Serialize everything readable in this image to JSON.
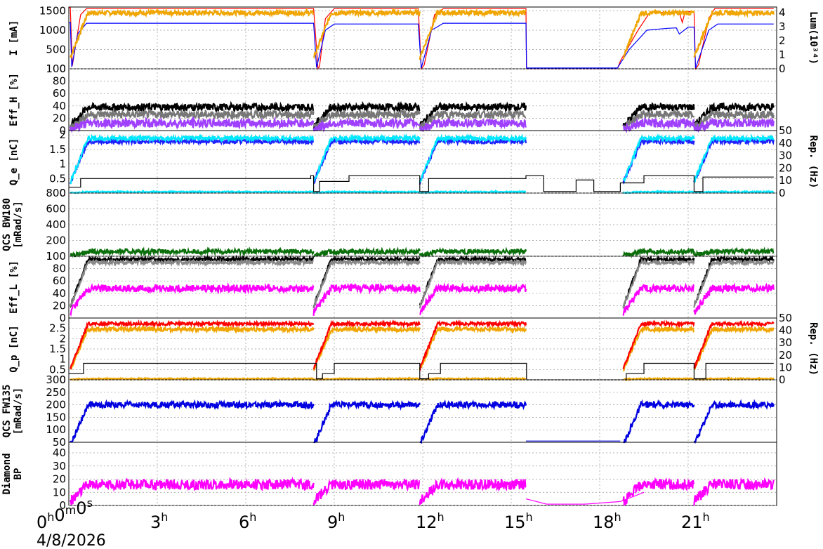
{
  "chart_data": {
    "type": "line",
    "x_axis": {
      "range_hours": [
        0,
        24
      ],
      "tick_labels": [
        {
          "hour": 0,
          "base": "0",
          "text": [
            [
              "0",
              "h"
            ],
            [
              "0",
              "m"
            ],
            [
              "0",
              "s"
            ]
          ]
        },
        {
          "hour": 3,
          "text": [
            [
              "3",
              "h"
            ]
          ]
        },
        {
          "hour": 6,
          "text": [
            [
              "6",
              "h"
            ]
          ]
        },
        {
          "hour": 9,
          "text": [
            [
              "9",
              "h"
            ]
          ]
        },
        {
          "hour": 12,
          "text": [
            [
              "12",
              "h"
            ]
          ]
        },
        {
          "hour": 15,
          "text": [
            [
              "15",
              "h"
            ]
          ]
        },
        {
          "hour": 18,
          "text": [
            [
              "18",
              "h"
            ]
          ]
        },
        {
          "hour": 21,
          "text": [
            [
              "21",
              "h"
            ]
          ]
        }
      ],
      "date": "4/8/2026"
    },
    "fills": [
      [
        0.05,
        8.3
      ],
      [
        8.3,
        11.9
      ],
      [
        11.9,
        15.5
      ],
      [
        18.8,
        21.2
      ],
      [
        21.2,
        23.9
      ]
    ],
    "panels": [
      {
        "ylabel": "I [mA]",
        "ylim": [
          0,
          1600
        ],
        "yticks": [
          0,
          500,
          1000,
          1500
        ],
        "right_label": "Lum(10³⁴)",
        "right_lim": [
          0,
          4.4
        ],
        "right_ticks": [
          0,
          1,
          2,
          3,
          4
        ],
        "series": [
          {
            "kind": "line",
            "color": "#ff0000",
            "points": [
              [
                0,
                1580
              ],
              [
                0.05,
                1580
              ],
              [
                0.12,
                80
              ],
              [
                0.4,
                1400
              ],
              [
                0.6,
                1560
              ],
              [
                8.3,
                1560
              ],
              [
                8.45,
                0
              ],
              [
                8.5,
                60
              ],
              [
                8.7,
                1300
              ],
              [
                9.0,
                1560
              ],
              [
                11.85,
                1560
              ],
              [
                11.95,
                0
              ],
              [
                12.05,
                100
              ],
              [
                12.4,
                1400
              ],
              [
                12.7,
                1560
              ],
              [
                15.5,
                1560
              ],
              [
                15.52,
                0
              ],
              [
                18.6,
                0
              ],
              [
                18.7,
                200
              ],
              [
                19.3,
                1000
              ],
              [
                19.7,
                1460
              ],
              [
                20.7,
                1460
              ],
              [
                20.8,
                1200
              ],
              [
                20.9,
                1480
              ],
              [
                21.2,
                1480
              ],
              [
                21.25,
                0
              ],
              [
                21.35,
                100
              ],
              [
                21.7,
                1300
              ],
              [
                21.9,
                1560
              ],
              [
                23.9,
                1560
              ]
            ]
          },
          {
            "kind": "line",
            "color": "#0000ff",
            "points": [
              [
                0,
                1200
              ],
              [
                0.05,
                1200
              ],
              [
                0.1,
                50
              ],
              [
                0.3,
                900
              ],
              [
                0.6,
                1180
              ],
              [
                8.3,
                1180
              ],
              [
                8.4,
                30
              ],
              [
                8.7,
                1000
              ],
              [
                9.0,
                1160
              ],
              [
                11.85,
                1160
              ],
              [
                11.95,
                20
              ],
              [
                12.3,
                1000
              ],
              [
                12.7,
                1180
              ],
              [
                15.5,
                1180
              ],
              [
                15.52,
                20
              ],
              [
                18.6,
                20
              ],
              [
                19.0,
                500
              ],
              [
                19.6,
                1000
              ],
              [
                20.3,
                1050
              ],
              [
                20.6,
                1060
              ],
              [
                20.7,
                900
              ],
              [
                21.0,
                1080
              ],
              [
                21.2,
                1080
              ],
              [
                21.25,
                20
              ],
              [
                21.7,
                1000
              ],
              [
                22.0,
                1160
              ],
              [
                23.9,
                1160
              ]
            ]
          },
          {
            "kind": "fill",
            "color": "#f0a500",
            "value": 1450,
            "noise": 60
          },
          {
            "kind": "line",
            "color": "#000000",
            "width": 0.8,
            "points": [
              [
                15.5,
                0
              ],
              [
                18.6,
                0
              ]
            ]
          }
        ]
      },
      {
        "ylabel": "Eff_H [%]",
        "ylim": [
          0,
          100
        ],
        "yticks": [
          0,
          20,
          40,
          60,
          80,
          100
        ],
        "series": [
          {
            "kind": "fill",
            "color": "#000000",
            "value": 38,
            "noise": 6
          },
          {
            "kind": "fill",
            "color": "#777777",
            "value": 26,
            "noise": 6
          },
          {
            "kind": "fill",
            "color": "#a040ff",
            "value": 12,
            "noise": 7
          }
        ]
      },
      {
        "ylabel": "Q_e [nC]",
        "ylim": [
          0,
          2.15
        ],
        "yticks": [
          0,
          0.5,
          1,
          1.5,
          2
        ],
        "right_label": "Rep. (Hz)",
        "right_lim": [
          0,
          50
        ],
        "right_ticks": [
          0,
          10,
          20,
          30,
          40,
          50
        ],
        "series": [
          {
            "kind": "fill",
            "color": "#2020ff",
            "value": 1.78,
            "noise": 0.08
          },
          {
            "kind": "fill",
            "color": "#00e8ff",
            "value": 1.88,
            "noise": 0.08
          },
          {
            "kind": "fill",
            "color": "#00e8ff",
            "value": 0.04,
            "noise": 0.02
          },
          {
            "kind": "step",
            "color": "#000000",
            "points": [
              [
                0,
                0.2
              ],
              [
                0.4,
                0.5
              ],
              [
                3,
                0.5
              ],
              [
                8.2,
                0.6
              ],
              [
                8.3,
                0.05
              ],
              [
                8.5,
                0.4
              ],
              [
                9.5,
                0.6
              ],
              [
                11.9,
                0.05
              ],
              [
                12.2,
                0.5
              ],
              [
                15.5,
                0.6
              ],
              [
                16.1,
                0.05
              ],
              [
                17.2,
                0.45
              ],
              [
                17.8,
                0.05
              ],
              [
                18.7,
                0.35
              ],
              [
                19.5,
                0.6
              ],
              [
                21.2,
                0.05
              ],
              [
                21.5,
                0.55
              ],
              [
                23.9,
                0.55
              ]
            ]
          }
        ]
      },
      {
        "ylabel": "QCS BW180 [mRad/s]",
        "ylim": [
          0,
          800
        ],
        "yticks": [
          200,
          400,
          600,
          800
        ],
        "series": [
          {
            "kind": "fill",
            "color": "#0a6e0a",
            "value": 60,
            "noise": 30
          }
        ]
      },
      {
        "ylabel": "Eff_L [%]",
        "ylim": [
          0,
          100
        ],
        "yticks": [
          0,
          20,
          40,
          60,
          80,
          100
        ],
        "series": [
          {
            "kind": "fill",
            "color": "#000000",
            "value": 95,
            "noise": 3
          },
          {
            "kind": "fill",
            "color": "#888888",
            "value": 90,
            "noise": 3
          },
          {
            "kind": "fill",
            "color": "#ff00ff",
            "value": 48,
            "noise": 6
          }
        ]
      },
      {
        "ylabel": "Q_p [nC]",
        "ylim": [
          0,
          3
        ],
        "yticks": [
          0,
          0.5,
          1,
          1.5,
          2,
          2.5
        ],
        "right_label": "Rep. (Hz)",
        "right_lim": [
          0,
          50
        ],
        "right_ticks": [
          0,
          10,
          20,
          30,
          40,
          50
        ],
        "series": [
          {
            "kind": "fill",
            "color": "#f0a500",
            "value": 2.45,
            "noise": 0.1
          },
          {
            "kind": "fill",
            "color": "#ff0000",
            "value": 2.72,
            "noise": 0.08
          },
          {
            "kind": "fill",
            "color": "#f0a500",
            "value": 0.05,
            "noise": 0.03
          },
          {
            "kind": "step",
            "color": "#000000",
            "points": [
              [
                0,
                0.3
              ],
              [
                0.5,
                0.8
              ],
              [
                8.3,
                0.8
              ],
              [
                8.4,
                0.05
              ],
              [
                8.6,
                0.3
              ],
              [
                9.0,
                0.8
              ],
              [
                11.9,
                0.05
              ],
              [
                12.2,
                0.3
              ],
              [
                12.6,
                0.8
              ],
              [
                15.5,
                0.8
              ],
              [
                15.52,
                0.0
              ],
              [
                18.7,
                0.0
              ],
              [
                18.9,
                0.3
              ],
              [
                19.5,
                0.8
              ],
              [
                21.2,
                0.05
              ],
              [
                21.6,
                0.8
              ],
              [
                23.9,
                0.8
              ]
            ]
          }
        ]
      },
      {
        "ylabel": "QCS FW135 [mRad/s]",
        "ylim": [
          50,
          300
        ],
        "yticks": [
          50,
          100,
          150,
          200,
          250,
          300
        ],
        "series": [
          {
            "kind": "fill",
            "color": "#0000e0",
            "value": 200,
            "noise": 12
          },
          {
            "kind": "line",
            "color": "#0000e0",
            "points": [
              [
                15.5,
                55
              ],
              [
                18.7,
                55
              ]
            ]
          }
        ]
      },
      {
        "ylabel": "Diamond BP",
        "ylim": [
          0,
          48
        ],
        "yticks": [
          0,
          10,
          20,
          30,
          40
        ],
        "series": [
          {
            "kind": "fill",
            "color": "#ff00ff",
            "value": 16,
            "noise": 4
          },
          {
            "kind": "line",
            "color": "#ff00ff",
            "points": [
              [
                15.5,
                5
              ],
              [
                16.2,
                1
              ],
              [
                17.5,
                1
              ],
              [
                18.7,
                3
              ],
              [
                19.5,
                10
              ]
            ]
          }
        ]
      }
    ]
  }
}
